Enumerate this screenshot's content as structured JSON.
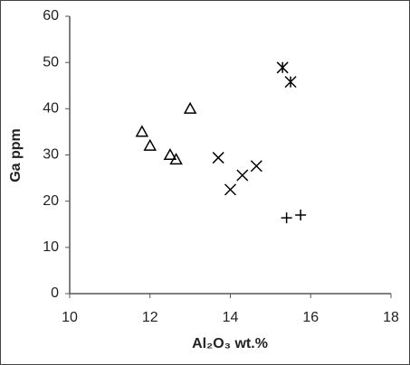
{
  "chart_data": {
    "type": "scatter",
    "x_label": "Al₂O₃ wt.%",
    "y_label": "Ga ppm",
    "xlim": [
      10,
      18
    ],
    "xticks": [
      10,
      12,
      14,
      16,
      18
    ],
    "ylim": [
      0,
      60
    ],
    "yticks": [
      0,
      10,
      20,
      30,
      40,
      50,
      60
    ],
    "grid": false,
    "series": [
      {
        "marker": "triangle",
        "color": "#000000",
        "x": [
          11.8,
          12.0,
          12.5,
          12.65,
          13.0
        ],
        "values": [
          35,
          32,
          30,
          29,
          40
        ]
      },
      {
        "marker": "x",
        "color": "#000000",
        "x": [
          13.7,
          14.0,
          14.3,
          14.65
        ],
        "values": [
          29.4,
          22.5,
          25.6,
          27.6
        ]
      },
      {
        "marker": "asterisk",
        "color": "#000000",
        "x": [
          15.3,
          15.5
        ],
        "values": [
          48.9,
          45.8
        ]
      },
      {
        "marker": "plus",
        "color": "#000000",
        "x": [
          15.4,
          15.75
        ],
        "values": [
          16.4,
          17.0
        ]
      }
    ]
  }
}
